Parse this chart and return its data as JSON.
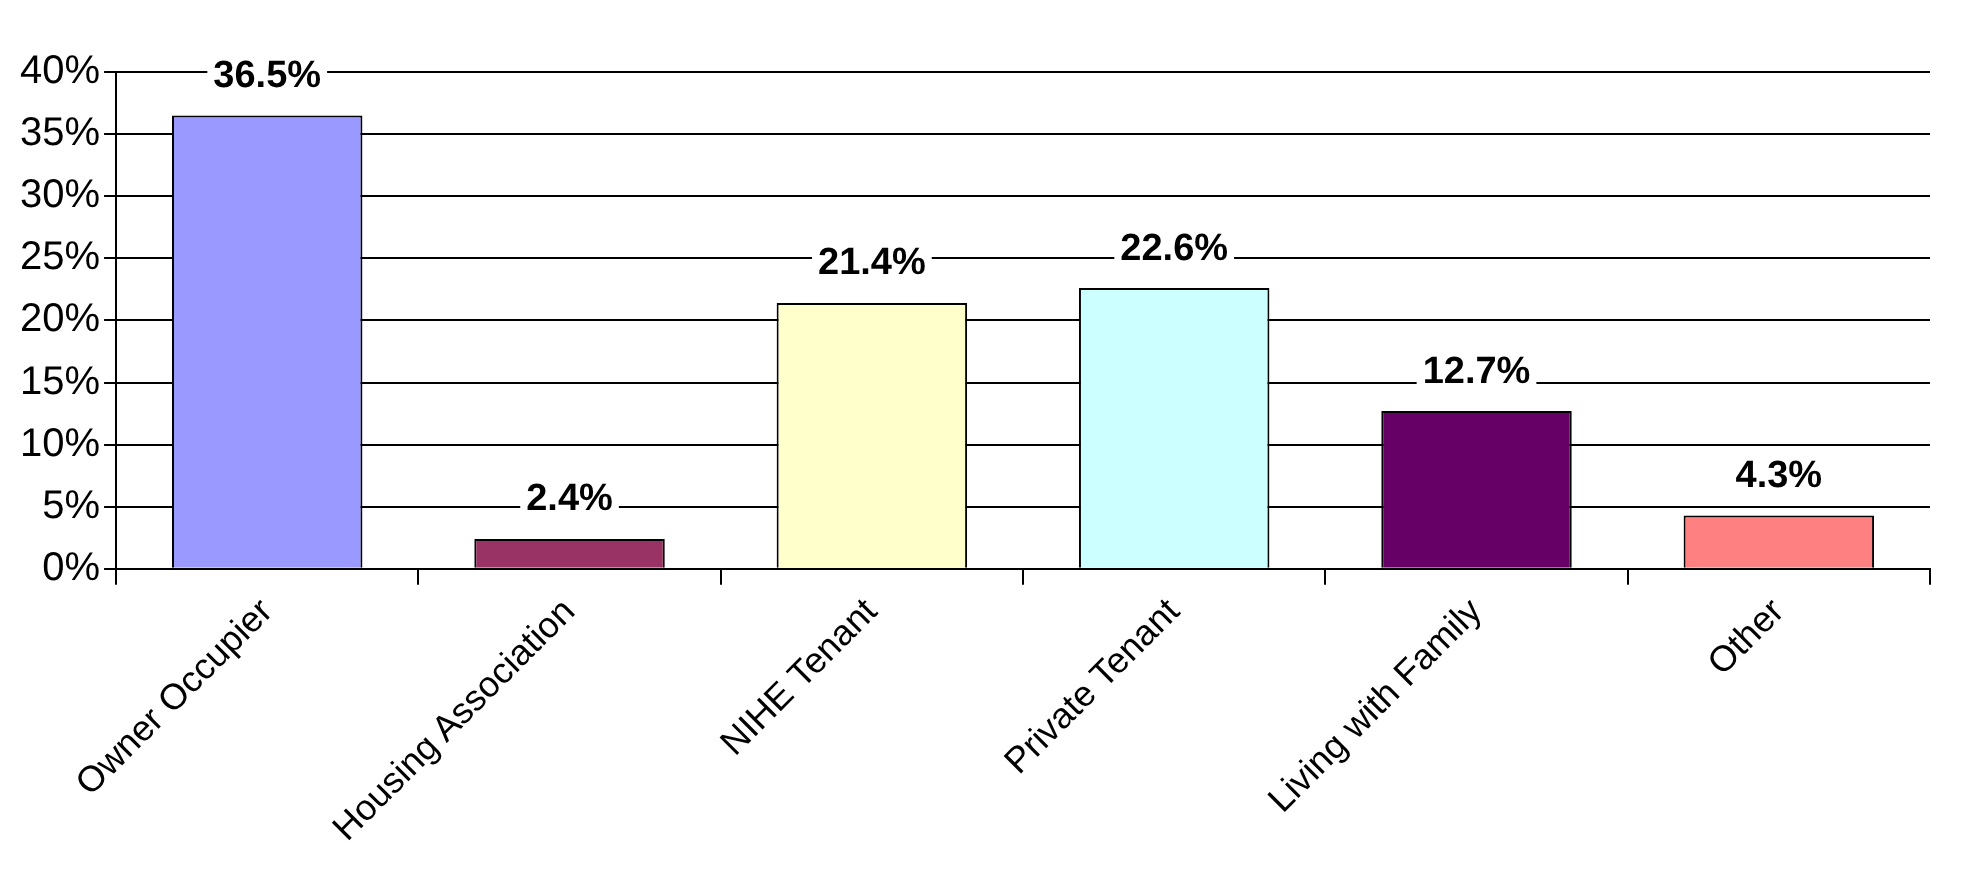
{
  "chart_data": {
    "type": "bar",
    "categories": [
      "Owner Occupier",
      "Housing Association",
      "NIHE Tenant",
      "Private Tenant",
      "Living with Family",
      "Other"
    ],
    "values": [
      36.5,
      2.4,
      21.4,
      22.6,
      12.7,
      4.3
    ],
    "colors": [
      "#9999ff",
      "#993366",
      "#ffffcc",
      "#ccffff",
      "#660066",
      "#ff8080"
    ],
    "value_labels": [
      "36.5%",
      "2.4%",
      "21.4%",
      "22.6%",
      "12.7%",
      "4.3%"
    ],
    "ylim": [
      0,
      40
    ],
    "yticks": [
      {
        "value": 0,
        "label": "0%"
      },
      {
        "value": 5,
        "label": "5%"
      },
      {
        "value": 10,
        "label": "10%"
      },
      {
        "value": 15,
        "label": "15%"
      },
      {
        "value": 20,
        "label": "20%"
      },
      {
        "value": 25,
        "label": "25%"
      },
      {
        "value": 30,
        "label": "30%"
      },
      {
        "value": 35,
        "label": "35%"
      },
      {
        "value": 40,
        "label": "40%"
      }
    ],
    "grid": "y",
    "legend": false
  }
}
